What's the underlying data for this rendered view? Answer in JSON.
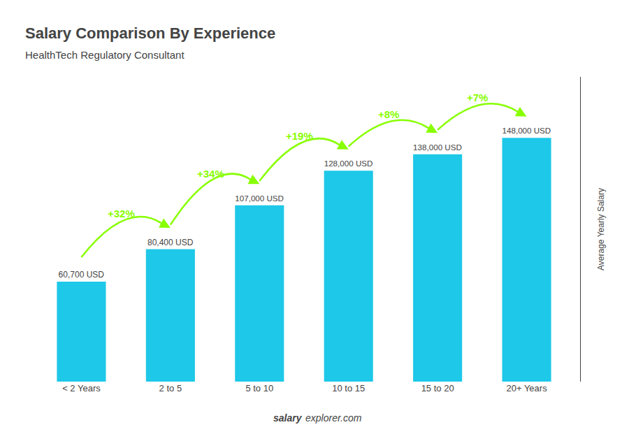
{
  "chart_data": {
    "type": "bar",
    "title": "Salary Comparison By Experience",
    "subtitle": "HealthTech Regulatory Consultant",
    "ylabel": "Average Yearly Salary",
    "categories": [
      "< 2 Years",
      "2 to 5",
      "5 to 10",
      "10 to 15",
      "15 to 20",
      "20+ Years"
    ],
    "values": [
      60700,
      80400,
      107000,
      128000,
      138000,
      148000
    ],
    "value_labels": [
      "60,700 USD",
      "80,400 USD",
      "107,000 USD",
      "128,000 USD",
      "138,000 USD",
      "148,000 USD"
    ],
    "data_labels": true,
    "color": "#1EC8E8",
    "ylim": [
      0,
      185000
    ],
    "tick_labels": "x",
    "grid": false,
    "annotations": [
      {
        "text": "+32%",
        "color": "#88ff00"
      },
      {
        "text": "+34%",
        "color": "#88ff00"
      },
      {
        "text": "+19%",
        "color": "#88ff00"
      },
      {
        "text": "+8%",
        "color": "#88ff00"
      },
      {
        "text": "+7%",
        "color": "#88ff00"
      }
    ],
    "footer": [
      "salary",
      "explorer.com"
    ]
  }
}
